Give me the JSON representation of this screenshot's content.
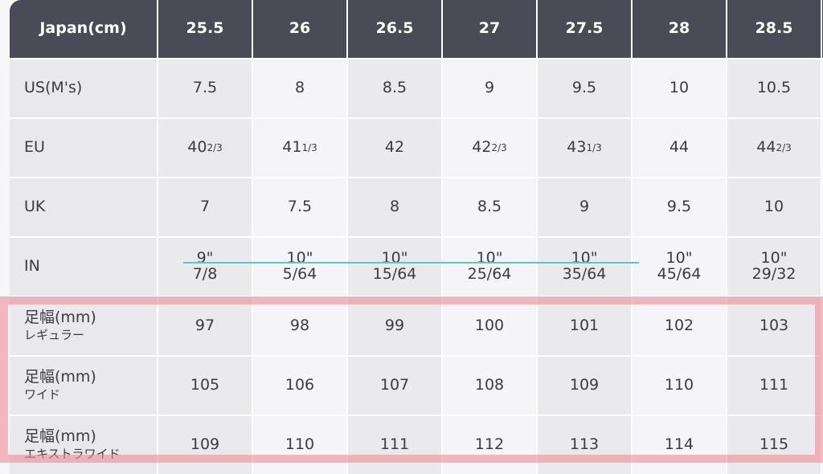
{
  "table": {
    "header": {
      "label": "Japan(cm)",
      "values": [
        "25.5",
        "26",
        "26.5",
        "27",
        "27.5",
        "28",
        "28.5"
      ]
    },
    "rows": [
      {
        "label": "US(M's)",
        "values": [
          "7.5",
          "8",
          "8.5",
          "9",
          "9.5",
          "10",
          "10.5"
        ]
      },
      {
        "label": "EU",
        "values": [
          {
            "main": "40",
            "sup": "2/3"
          },
          {
            "main": "41",
            "sup": "1/3"
          },
          {
            "main": "42",
            "sup": ""
          },
          {
            "main": "42",
            "sup": "2/3"
          },
          {
            "main": "43",
            "sup": "1/3"
          },
          {
            "main": "44",
            "sup": ""
          },
          {
            "main": "44",
            "sup": "2/3"
          }
        ]
      },
      {
        "label": "UK",
        "values": [
          "7",
          "7.5",
          "8",
          "8.5",
          "9",
          "9.5",
          "10"
        ]
      },
      {
        "label": "IN",
        "values": [
          {
            "top": "9\"",
            "bottom": "7/8"
          },
          {
            "top": "10\"",
            "bottom": "5/64"
          },
          {
            "top": "10\"",
            "bottom": "15/64"
          },
          {
            "top": "10\"",
            "bottom": "25/64"
          },
          {
            "top": "10\"",
            "bottom": "35/64"
          },
          {
            "top": "10\"",
            "bottom": "45/64"
          },
          {
            "top": "10\"",
            "bottom": "29/32"
          }
        ]
      },
      {
        "label": "足幅(mm)",
        "sublabel": "レギュラー",
        "values": [
          "97",
          "98",
          "99",
          "100",
          "101",
          "102",
          "103"
        ]
      },
      {
        "label": "足幅(mm)",
        "sublabel": "ワイド",
        "values": [
          "105",
          "106",
          "107",
          "108",
          "109",
          "110",
          "111"
        ]
      },
      {
        "label": "足幅(mm)",
        "sublabel": "エキストラワイド",
        "values": [
          "109",
          "110",
          "111",
          "112",
          "113",
          "114",
          "115"
        ]
      }
    ]
  },
  "colors": {
    "header_bg": "#4b4b57",
    "highlight_box": "#ec8c96",
    "annotation_line": "#56c8cf"
  }
}
